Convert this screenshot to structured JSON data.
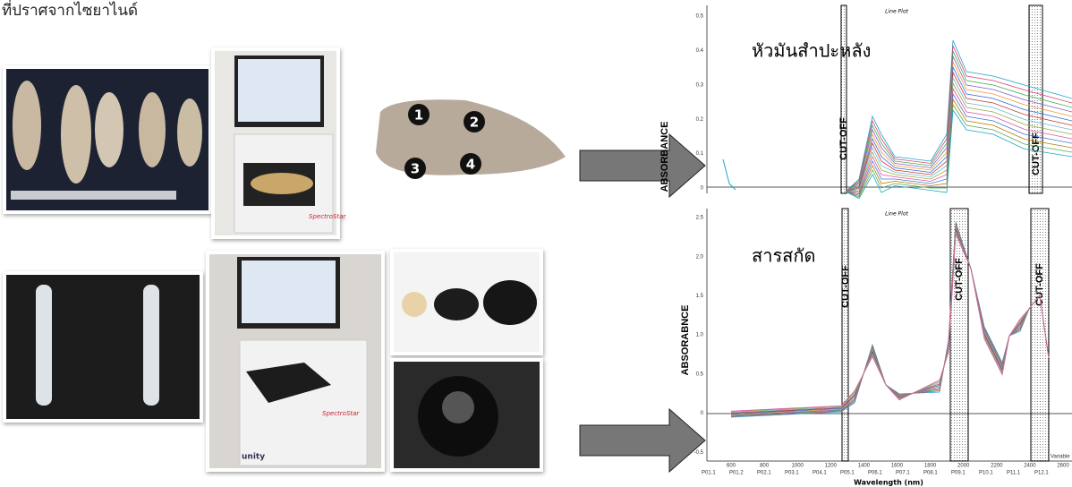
{
  "header": {
    "caption": "ที่ปราศจากไซยาไนด์"
  },
  "photos": {
    "points": [
      "1",
      "2",
      "3",
      "4"
    ],
    "brand": "SpectroStar",
    "brand2": "unity"
  },
  "top_plot": {
    "title": "Line Plot",
    "label": "หัวมันสำปะหลัง",
    "ylabel": "ABSORBANCE",
    "cutoff": "CUT-OFF",
    "yticks": [
      "0.5",
      "0.4",
      "0.3",
      "0.2",
      "0.1",
      "0"
    ]
  },
  "bottom_plot": {
    "title": "Line Plot",
    "label": "สารสกัด",
    "ylabel": "ABSORABNCE",
    "cutoff": "CUT-OFF",
    "yticks": [
      "2.5",
      "2.0",
      "1.5",
      "1.0",
      "0.5",
      "0",
      "-0.5"
    ],
    "xticks": [
      "600",
      "800",
      "1000",
      "1200",
      "1400",
      "1600",
      "1800",
      "2000",
      "2200",
      "2400",
      "2600"
    ],
    "xlabel": "Wavelength (nm)",
    "legend_title": "Variable",
    "legend": [
      "P01.1",
      "P01.2",
      "P02.1",
      "P03.1",
      "P04.1",
      "P05.1",
      "P06.1",
      "P07.1",
      "P08.1",
      "P09.1",
      "P10.1",
      "P11.1",
      "P12.1"
    ]
  }
}
